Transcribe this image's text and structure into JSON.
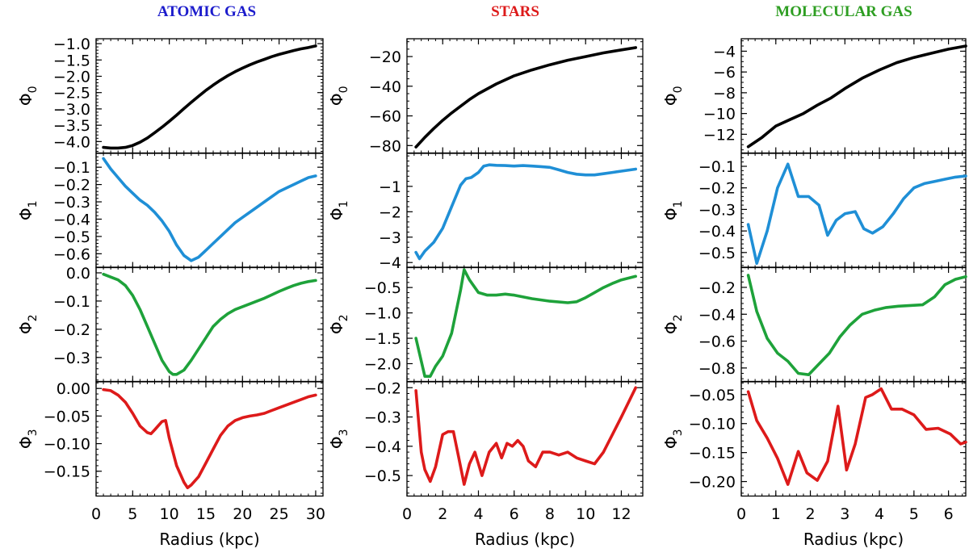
{
  "chart_data": [
    {
      "type": "line",
      "title": "ATOMIC GAS",
      "title_color": "#1c1ccc",
      "xlabel": "Radius (kpc)",
      "xlim": [
        0,
        31
      ],
      "x_ticks": [
        0,
        5,
        10,
        15,
        20,
        25,
        30
      ],
      "x_minor_step": 1,
      "x_tick_labels": [
        "0",
        "5",
        "10",
        "15",
        "20",
        "25",
        "30"
      ],
      "panels": [
        {
          "ylabel": "Φ",
          "ylabel_sub": "0",
          "color": "#000000",
          "ylim": [
            -4.35,
            -0.85
          ],
          "y_ticks": [
            -4.0,
            -3.5,
            -3.0,
            -2.5,
            -2.0,
            -1.5,
            -1.0
          ],
          "y_minor_step": 0.1,
          "y_tick_labels": [
            "−4.0",
            "−3.5",
            "−3.0",
            "−2.5",
            "−2.0",
            "−1.5",
            "−1.0"
          ],
          "x": [
            1,
            2,
            3,
            4,
            5,
            6,
            7,
            8,
            9,
            10,
            11,
            12,
            13,
            14,
            15,
            16,
            17,
            18,
            19,
            20,
            21,
            22,
            23,
            24,
            25,
            26,
            27,
            28,
            29,
            30
          ],
          "y": [
            -4.18,
            -4.2,
            -4.2,
            -4.18,
            -4.12,
            -4.02,
            -3.89,
            -3.73,
            -3.56,
            -3.38,
            -3.19,
            -2.99,
            -2.8,
            -2.61,
            -2.43,
            -2.27,
            -2.12,
            -1.98,
            -1.86,
            -1.75,
            -1.65,
            -1.56,
            -1.48,
            -1.4,
            -1.33,
            -1.27,
            -1.21,
            -1.16,
            -1.12,
            -1.07
          ]
        },
        {
          "ylabel": "Φ",
          "ylabel_sub": "1",
          "color": "#1f8fd6",
          "ylim": [
            -0.68,
            -0.02
          ],
          "y_ticks": [
            -0.6,
            -0.5,
            -0.4,
            -0.3,
            -0.2,
            -0.1
          ],
          "y_minor_step": 0.02,
          "y_tick_labels": [
            "−0.6",
            "−0.5",
            "−0.4",
            "−0.3",
            "−0.2",
            "−0.1"
          ],
          "x": [
            1,
            2,
            3,
            4,
            5,
            6,
            7,
            8,
            9,
            10,
            11,
            12,
            13,
            14,
            15,
            16,
            17,
            18,
            19,
            20,
            21,
            22,
            23,
            24,
            25,
            26,
            27,
            28,
            29,
            30
          ],
          "y": [
            -0.05,
            -0.11,
            -0.16,
            -0.21,
            -0.25,
            -0.29,
            -0.32,
            -0.36,
            -0.41,
            -0.47,
            -0.55,
            -0.61,
            -0.64,
            -0.62,
            -0.58,
            -0.54,
            -0.5,
            -0.46,
            -0.42,
            -0.39,
            -0.36,
            -0.33,
            -0.3,
            -0.27,
            -0.24,
            -0.22,
            -0.2,
            -0.18,
            -0.16,
            -0.15
          ]
        },
        {
          "ylabel": "Φ",
          "ylabel_sub": "2",
          "color": "#1ea23a",
          "ylim": [
            -0.385,
            0.02
          ],
          "y_ticks": [
            -0.3,
            -0.2,
            -0.1,
            0.0
          ],
          "y_minor_step": 0.02,
          "y_tick_labels": [
            "−0.3",
            "−0.2",
            "−0.1",
            "0.0"
          ],
          "x": [
            1,
            2,
            3,
            4,
            5,
            6,
            7,
            8,
            9,
            10,
            10.5,
            11,
            12,
            13,
            14,
            15,
            16,
            17,
            18,
            19,
            20,
            21,
            22,
            23,
            24,
            25,
            26,
            27,
            28,
            29,
            30
          ],
          "y": [
            -0.005,
            -0.015,
            -0.025,
            -0.045,
            -0.08,
            -0.13,
            -0.19,
            -0.25,
            -0.31,
            -0.35,
            -0.36,
            -0.36,
            -0.345,
            -0.31,
            -0.27,
            -0.23,
            -0.19,
            -0.165,
            -0.145,
            -0.13,
            -0.12,
            -0.11,
            -0.1,
            -0.09,
            -0.078,
            -0.066,
            -0.055,
            -0.045,
            -0.037,
            -0.031,
            -0.027
          ]
        },
        {
          "ylabel": "Φ",
          "ylabel_sub": "3",
          "color": "#dd1a1a",
          "ylim": [
            -0.195,
            0.012
          ],
          "y_ticks": [
            -0.15,
            -0.1,
            -0.05,
            0.0
          ],
          "y_minor_step": 0.01,
          "y_tick_labels": [
            "−0.15",
            "−0.10",
            "−0.05",
            "0.00"
          ],
          "x": [
            1,
            2,
            3,
            4,
            5,
            6,
            7,
            7.5,
            8,
            9,
            9.5,
            10,
            11,
            12,
            12.5,
            13,
            14,
            15,
            16,
            17,
            18,
            19,
            20,
            21,
            22,
            23,
            24,
            25,
            26,
            27,
            28,
            29,
            30
          ],
          "y": [
            -0.002,
            -0.004,
            -0.012,
            -0.025,
            -0.045,
            -0.068,
            -0.08,
            -0.082,
            -0.075,
            -0.06,
            -0.058,
            -0.09,
            -0.14,
            -0.17,
            -0.18,
            -0.175,
            -0.16,
            -0.135,
            -0.11,
            -0.085,
            -0.068,
            -0.058,
            -0.053,
            -0.05,
            -0.048,
            -0.045,
            -0.04,
            -0.035,
            -0.03,
            -0.025,
            -0.02,
            -0.015,
            -0.012
          ]
        }
      ]
    },
    {
      "type": "line",
      "title": "STARS",
      "title_color": "#dd1a1a",
      "xlabel": "Radius (kpc)",
      "xlim": [
        0,
        13.2
      ],
      "x_ticks": [
        0,
        2,
        4,
        6,
        8,
        10,
        12
      ],
      "x_minor_step": 0.4,
      "x_tick_labels": [
        "0",
        "2",
        "4",
        "6",
        "8",
        "10",
        "12"
      ],
      "panels": [
        {
          "ylabel": "Φ",
          "ylabel_sub": "0",
          "color": "#000000",
          "ylim": [
            -85,
            -8
          ],
          "y_ticks": [
            -80,
            -60,
            -40,
            -20
          ],
          "y_minor_step": 5,
          "y_tick_labels": [
            "−80",
            "−60",
            "−40",
            "−20"
          ],
          "x": [
            0.5,
            1,
            1.5,
            2,
            2.5,
            3,
            3.5,
            4,
            5,
            6,
            7,
            8,
            9,
            10,
            11,
            12,
            12.8
          ],
          "y": [
            -81,
            -74.5,
            -68.5,
            -63,
            -58,
            -53.5,
            -49,
            -45,
            -38.5,
            -33,
            -29,
            -25.5,
            -22.5,
            -20,
            -17.5,
            -15.5,
            -14
          ]
        },
        {
          "ylabel": "Φ",
          "ylabel_sub": "1",
          "color": "#1f8fd6",
          "ylim": [
            -4.2,
            0.3
          ],
          "y_ticks": [
            -4,
            -3,
            -2,
            -1
          ],
          "y_minor_step": 0.2,
          "y_tick_labels": [
            "−4",
            "−3",
            "−2",
            "−1"
          ],
          "x": [
            0.5,
            0.7,
            1,
            1.5,
            2,
            2.5,
            3,
            3.3,
            3.6,
            4,
            4.3,
            4.6,
            5,
            5.5,
            6,
            6.5,
            7,
            7.5,
            8,
            8.5,
            9,
            9.5,
            10,
            10.5,
            11,
            11.5,
            12,
            12.8
          ],
          "y": [
            -3.6,
            -3.85,
            -3.55,
            -3.2,
            -2.65,
            -1.8,
            -0.95,
            -0.7,
            -0.65,
            -0.45,
            -0.2,
            -0.15,
            -0.17,
            -0.18,
            -0.2,
            -0.18,
            -0.2,
            -0.22,
            -0.25,
            -0.35,
            -0.45,
            -0.52,
            -0.55,
            -0.55,
            -0.5,
            -0.45,
            -0.4,
            -0.32
          ]
        },
        {
          "ylabel": "Φ",
          "ylabel_sub": "2",
          "color": "#1ea23a",
          "ylim": [
            -2.35,
            -0.1
          ],
          "y_ticks": [
            -2.0,
            -1.5,
            -1.0,
            -0.5
          ],
          "y_minor_step": 0.1,
          "y_tick_labels": [
            "−2.0",
            "−1.5",
            "−1.0",
            "−0.5"
          ],
          "x": [
            0.5,
            1,
            1.3,
            1.6,
            2,
            2.5,
            3,
            3.2,
            3.5,
            4,
            4.5,
            5,
            5.5,
            6,
            7,
            8,
            9,
            9.5,
            10,
            10.5,
            11,
            11.5,
            12,
            12.8
          ],
          "y": [
            -1.5,
            -2.25,
            -2.25,
            -2.05,
            -1.85,
            -1.4,
            -0.55,
            -0.15,
            -0.35,
            -0.6,
            -0.65,
            -0.65,
            -0.63,
            -0.65,
            -0.72,
            -0.77,
            -0.8,
            -0.78,
            -0.7,
            -0.6,
            -0.5,
            -0.42,
            -0.35,
            -0.28
          ]
        },
        {
          "ylabel": "Φ",
          "ylabel_sub": "3",
          "color": "#dd1a1a",
          "ylim": [
            -0.57,
            -0.18
          ],
          "y_ticks": [
            -0.5,
            -0.4,
            -0.3,
            -0.2
          ],
          "y_minor_step": 0.02,
          "y_tick_labels": [
            "−0.5",
            "−0.4",
            "−0.3",
            "−0.2"
          ],
          "x": [
            0.5,
            0.8,
            1,
            1.3,
            1.6,
            2,
            2.3,
            2.6,
            2.9,
            3.2,
            3.5,
            3.8,
            4.2,
            4.6,
            5,
            5.3,
            5.6,
            5.9,
            6.2,
            6.5,
            6.8,
            7.2,
            7.6,
            8,
            8.5,
            9,
            9.5,
            10,
            10.5,
            11,
            11.5,
            12,
            12.8
          ],
          "y": [
            -0.21,
            -0.42,
            -0.48,
            -0.52,
            -0.47,
            -0.36,
            -0.35,
            -0.35,
            -0.44,
            -0.53,
            -0.46,
            -0.42,
            -0.5,
            -0.42,
            -0.39,
            -0.44,
            -0.39,
            -0.4,
            -0.38,
            -0.4,
            -0.45,
            -0.47,
            -0.42,
            -0.42,
            -0.43,
            -0.42,
            -0.44,
            -0.45,
            -0.46,
            -0.42,
            -0.36,
            -0.3,
            -0.2
          ]
        }
      ]
    },
    {
      "type": "line",
      "title": "MOLECULAR GAS",
      "title_color": "#2e9e22",
      "xlabel": "Radius (kpc)",
      "xlim": [
        0,
        6.5
      ],
      "x_ticks": [
        0,
        1,
        2,
        3,
        4,
        5,
        6
      ],
      "x_minor_step": 0.2,
      "x_tick_labels": [
        "0",
        "1",
        "2",
        "3",
        "4",
        "5",
        "6"
      ],
      "panels": [
        {
          "ylabel": "Φ",
          "ylabel_sub": "0",
          "color": "#000000",
          "ylim": [
            -13.8,
            -2.8
          ],
          "y_ticks": [
            -12,
            -10,
            -8,
            -6,
            -4
          ],
          "y_minor_step": 0.5,
          "y_tick_labels": [
            "−12",
            "−10",
            "−8",
            "−6",
            "−4"
          ],
          "x": [
            0.2,
            0.6,
            1,
            1.4,
            1.8,
            2.2,
            2.6,
            3,
            3.5,
            4,
            4.5,
            5,
            5.5,
            6,
            6.5
          ],
          "y": [
            -13.2,
            -12.3,
            -11.2,
            -10.6,
            -10,
            -9.2,
            -8.5,
            -7.6,
            -6.6,
            -5.8,
            -5.1,
            -4.6,
            -4.2,
            -3.8,
            -3.5
          ]
        },
        {
          "ylabel": "Φ",
          "ylabel_sub": "1",
          "color": "#1f8fd6",
          "ylim": [
            -0.57,
            -0.04
          ],
          "y_ticks": [
            -0.5,
            -0.4,
            -0.3,
            -0.2,
            -0.1
          ],
          "y_minor_step": 0.02,
          "y_tick_labels": [
            "−0.5",
            "−0.4",
            "−0.3",
            "−0.2",
            "−0.1"
          ],
          "x": [
            0.2,
            0.45,
            0.75,
            1.05,
            1.35,
            1.65,
            1.95,
            2.25,
            2.5,
            2.75,
            3,
            3.3,
            3.55,
            3.8,
            4.1,
            4.4,
            4.7,
            5,
            5.3,
            5.6,
            5.9,
            6.2,
            6.5
          ],
          "y": [
            -0.37,
            -0.55,
            -0.4,
            -0.2,
            -0.09,
            -0.24,
            -0.24,
            -0.28,
            -0.42,
            -0.35,
            -0.32,
            -0.31,
            -0.39,
            -0.41,
            -0.38,
            -0.32,
            -0.25,
            -0.2,
            -0.18,
            -0.17,
            -0.16,
            -0.15,
            -0.145
          ]
        },
        {
          "ylabel": "Φ",
          "ylabel_sub": "2",
          "color": "#1ea23a",
          "ylim": [
            -0.9,
            -0.05
          ],
          "y_ticks": [
            -0.8,
            -0.6,
            -0.4,
            -0.2
          ],
          "y_minor_step": 0.04,
          "y_tick_labels": [
            "−0.8",
            "−0.6",
            "−0.4",
            "−0.2"
          ],
          "x": [
            0.2,
            0.45,
            0.75,
            1.05,
            1.35,
            1.65,
            1.95,
            2.25,
            2.55,
            2.85,
            3.15,
            3.5,
            3.85,
            4.2,
            4.55,
            4.9,
            5.25,
            5.6,
            5.9,
            6.2,
            6.5
          ],
          "y": [
            -0.11,
            -0.38,
            -0.58,
            -0.69,
            -0.75,
            -0.84,
            -0.85,
            -0.77,
            -0.69,
            -0.57,
            -0.48,
            -0.4,
            -0.37,
            -0.35,
            -0.34,
            -0.335,
            -0.33,
            -0.27,
            -0.18,
            -0.14,
            -0.12
          ]
        },
        {
          "ylabel": "Φ",
          "ylabel_sub": "3",
          "color": "#dd1a1a",
          "ylim": [
            -0.225,
            -0.028
          ],
          "y_ticks": [
            -0.2,
            -0.15,
            -0.1,
            -0.05
          ],
          "y_minor_step": 0.01,
          "y_tick_labels": [
            "−0.20",
            "−0.15",
            "−0.10",
            "−0.05"
          ],
          "x": [
            0.2,
            0.45,
            0.75,
            1.05,
            1.35,
            1.65,
            1.9,
            2.2,
            2.5,
            2.8,
            3.05,
            3.3,
            3.6,
            3.8,
            4.05,
            4.35,
            4.65,
            5,
            5.35,
            5.7,
            6.05,
            6.35,
            6.5
          ],
          "y": [
            -0.045,
            -0.095,
            -0.125,
            -0.16,
            -0.205,
            -0.148,
            -0.185,
            -0.198,
            -0.165,
            -0.07,
            -0.18,
            -0.135,
            -0.055,
            -0.05,
            -0.04,
            -0.075,
            -0.075,
            -0.085,
            -0.11,
            -0.108,
            -0.118,
            -0.135,
            -0.132
          ]
        }
      ]
    }
  ]
}
